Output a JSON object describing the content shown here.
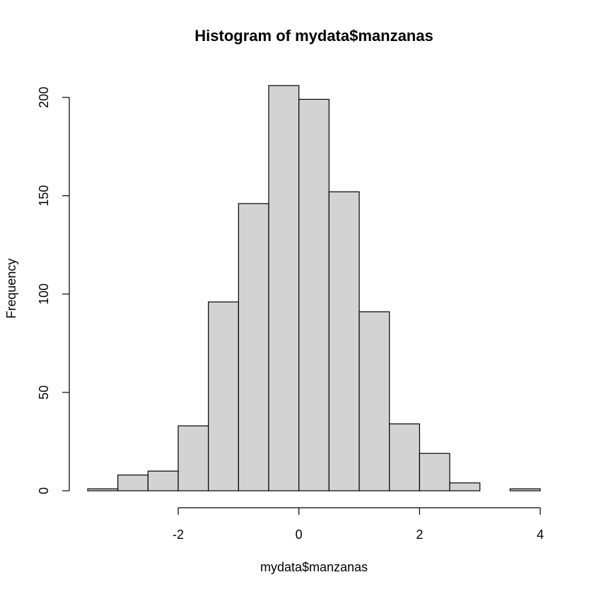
{
  "chart_data": {
    "type": "bar",
    "title": "Histogram of mydata$manzanas",
    "xlabel": "mydata$manzanas",
    "ylabel": "Frequency",
    "bin_edges": [
      -3.5,
      -3.0,
      -2.5,
      -2.0,
      -1.5,
      -1.0,
      -0.5,
      0.0,
      0.5,
      1.0,
      1.5,
      2.0,
      2.5,
      3.0,
      3.5,
      4.0
    ],
    "values": [
      1,
      8,
      10,
      33,
      96,
      146,
      206,
      199,
      152,
      91,
      34,
      19,
      4,
      0,
      1
    ],
    "xticks": [
      -2,
      0,
      2,
      4
    ],
    "yticks": [
      0,
      50,
      100,
      150,
      200
    ],
    "xlim": [
      -3.5,
      4.0
    ],
    "ylim": [
      0,
      206
    ],
    "bar_color": "#d3d3d3",
    "edge_color": "#000000",
    "grid": false,
    "legend": "none"
  }
}
